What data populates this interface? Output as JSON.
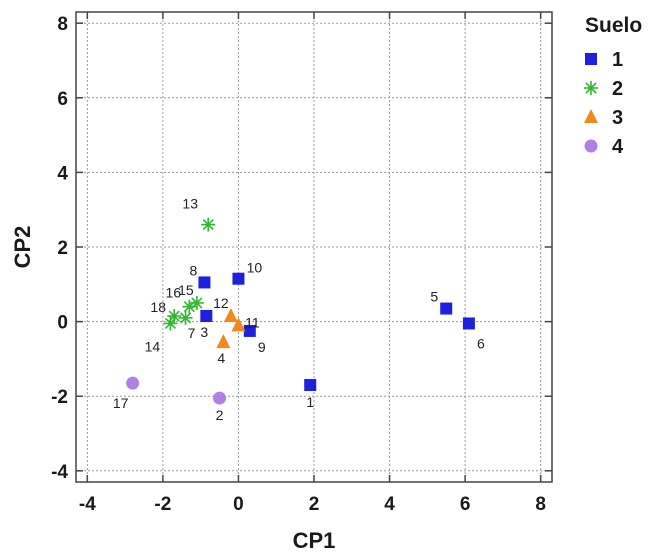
{
  "chart_data": {
    "type": "scatter",
    "xlabel": "CP1",
    "ylabel": "CP2",
    "xlim": [
      -4.3,
      8.3
    ],
    "ylim": [
      -4.3,
      8.3
    ],
    "xticks": [
      -4,
      -2,
      0,
      2,
      4,
      6,
      8
    ],
    "yticks": [
      -4,
      -2,
      0,
      2,
      4,
      6,
      8
    ],
    "grid": true,
    "legend": {
      "title": "Suelo",
      "position": "right"
    },
    "series": [
      {
        "name": "1",
        "marker": "square",
        "color": "#1f1fe0",
        "points": [
          {
            "label": "1",
            "x": 1.9,
            "y": -1.7
          },
          {
            "label": "3",
            "x": -0.85,
            "y": 0.15
          },
          {
            "label": "5",
            "x": 5.5,
            "y": 0.35
          },
          {
            "label": "6",
            "x": 6.1,
            "y": -0.05
          },
          {
            "label": "8",
            "x": -0.9,
            "y": 1.05
          },
          {
            "label": "9",
            "x": 0.3,
            "y": -0.25
          },
          {
            "label": "10",
            "x": 0.0,
            "y": 1.15
          }
        ]
      },
      {
        "name": "2",
        "marker": "asterisk",
        "color": "#2db82d",
        "points": [
          {
            "label": "7",
            "x": -1.4,
            "y": 0.1
          },
          {
            "label": "13",
            "x": -0.8,
            "y": 2.6
          },
          {
            "label": "14",
            "x": -1.8,
            "y": -0.05
          },
          {
            "label": "15",
            "x": -1.1,
            "y": 0.5
          },
          {
            "label": "16",
            "x": -1.3,
            "y": 0.4
          },
          {
            "label": "18",
            "x": -1.7,
            "y": 0.15
          }
        ]
      },
      {
        "name": "3",
        "marker": "triangle",
        "color": "#f08a1e",
        "points": [
          {
            "label": "4",
            "x": -0.4,
            "y": -0.55
          },
          {
            "label": "11",
            "x": 0.0,
            "y": -0.1
          },
          {
            "label": "12",
            "x": -0.2,
            "y": 0.15
          }
        ]
      },
      {
        "name": "4",
        "marker": "circle",
        "color": "#b07fe8",
        "points": [
          {
            "label": "2",
            "x": -0.5,
            "y": -2.05
          },
          {
            "label": "17",
            "x": -2.8,
            "y": -1.65
          }
        ]
      }
    ]
  }
}
